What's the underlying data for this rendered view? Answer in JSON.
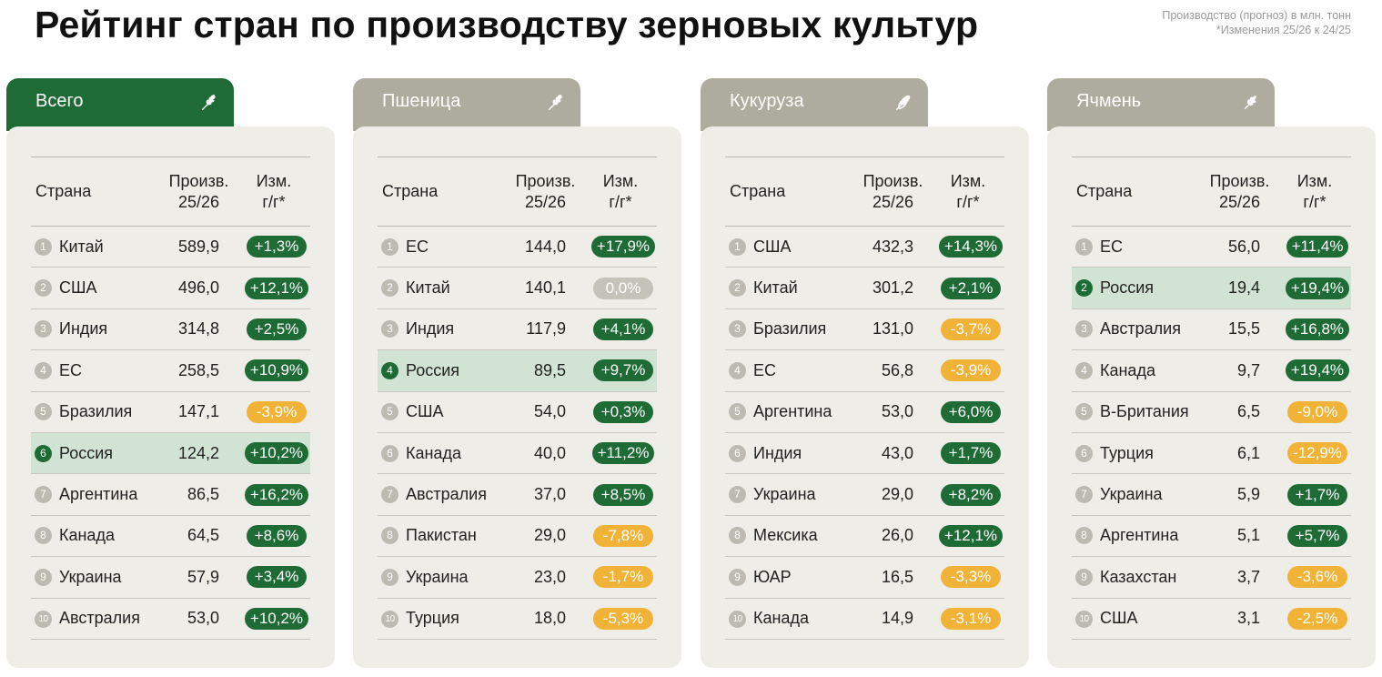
{
  "title": "Рейтинг стран по производству зерновых культур",
  "note": {
    "line1": "Производство (прогноз) в млн. тонн",
    "line2": "*Изменения 25/26 к 24/25"
  },
  "colors": {
    "active_tab": "#1e6b35",
    "inactive_tab": "#aeab9f",
    "card_bg": "#eeede8",
    "highlight_row": "#d1e4d3",
    "positive": "#1e6b35",
    "negative": "#f0b338",
    "neutral": "#c5c2b9"
  },
  "headers": {
    "country": "Страна",
    "prod_line1": "Произв.",
    "prod_line2": "25/26",
    "chg_line1": "Изм.",
    "chg_line2": "г/г*"
  },
  "panels": [
    {
      "tab": "Всего",
      "icon": "wheat-icon",
      "active": true,
      "rows": [
        {
          "rank": "1",
          "country": "Китай",
          "prod": "589,9",
          "chg": "+1,3%",
          "dir": "pos"
        },
        {
          "rank": "2",
          "country": "США",
          "prod": "496,0",
          "chg": "+12,1%",
          "dir": "pos"
        },
        {
          "rank": "3",
          "country": "Индия",
          "prod": "314,8",
          "chg": "+2,5%",
          "dir": "pos"
        },
        {
          "rank": "4",
          "country": "ЕС",
          "prod": "258,5",
          "chg": "+10,9%",
          "dir": "pos"
        },
        {
          "rank": "5",
          "country": "Бразилия",
          "prod": "147,1",
          "chg": "-3,9%",
          "dir": "neg"
        },
        {
          "rank": "6",
          "country": "Россия",
          "prod": "124,2",
          "chg": "+10,2%",
          "dir": "pos",
          "highlight": true
        },
        {
          "rank": "7",
          "country": "Аргентина",
          "prod": "86,5",
          "chg": "+16,2%",
          "dir": "pos"
        },
        {
          "rank": "8",
          "country": "Канада",
          "prod": "64,5",
          "chg": "+8,6%",
          "dir": "pos"
        },
        {
          "rank": "9",
          "country": "Украина",
          "prod": "57,9",
          "chg": "+3,4%",
          "dir": "pos"
        },
        {
          "rank": "10",
          "country": "Австралия",
          "prod": "53,0",
          "chg": "+10,2%",
          "dir": "pos"
        }
      ]
    },
    {
      "tab": "Пшеница",
      "icon": "wheat-icon",
      "active": false,
      "rows": [
        {
          "rank": "1",
          "country": "ЕС",
          "prod": "144,0",
          "chg": "+17,9%",
          "dir": "pos"
        },
        {
          "rank": "2",
          "country": "Китай",
          "prod": "140,1",
          "chg": "0,0%",
          "dir": "zero"
        },
        {
          "rank": "3",
          "country": "Индия",
          "prod": "117,9",
          "chg": "+4,1%",
          "dir": "pos"
        },
        {
          "rank": "4",
          "country": "Россия",
          "prod": "89,5",
          "chg": "+9,7%",
          "dir": "pos",
          "highlight": true
        },
        {
          "rank": "5",
          "country": "США",
          "prod": "54,0",
          "chg": "+0,3%",
          "dir": "pos"
        },
        {
          "rank": "6",
          "country": "Канада",
          "prod": "40,0",
          "chg": "+11,2%",
          "dir": "pos"
        },
        {
          "rank": "7",
          "country": "Австралия",
          "prod": "37,0",
          "chg": "+8,5%",
          "dir": "pos"
        },
        {
          "rank": "8",
          "country": "Пакистан",
          "prod": "29,0",
          "chg": "-7,8%",
          "dir": "neg"
        },
        {
          "rank": "9",
          "country": "Украина",
          "prod": "23,0",
          "chg": "-1,7%",
          "dir": "neg"
        },
        {
          "rank": "10",
          "country": "Турция",
          "prod": "18,0",
          "chg": "-5,3%",
          "dir": "neg"
        }
      ]
    },
    {
      "tab": "Кукуруза",
      "icon": "corn-icon",
      "active": false,
      "rows": [
        {
          "rank": "1",
          "country": "США",
          "prod": "432,3",
          "chg": "+14,3%",
          "dir": "pos"
        },
        {
          "rank": "2",
          "country": "Китай",
          "prod": "301,2",
          "chg": "+2,1%",
          "dir": "pos"
        },
        {
          "rank": "3",
          "country": "Бразилия",
          "prod": "131,0",
          "chg": "-3,7%",
          "dir": "neg"
        },
        {
          "rank": "4",
          "country": "ЕС",
          "prod": "56,8",
          "chg": "-3,9%",
          "dir": "neg"
        },
        {
          "rank": "5",
          "country": "Аргентина",
          "prod": "53,0",
          "chg": "+6,0%",
          "dir": "pos"
        },
        {
          "rank": "6",
          "country": "Индия",
          "prod": "43,0",
          "chg": "+1,7%",
          "dir": "pos"
        },
        {
          "rank": "7",
          "country": "Украина",
          "prod": "29,0",
          "chg": "+8,2%",
          "dir": "pos"
        },
        {
          "rank": "8",
          "country": "Мексика",
          "prod": "26,0",
          "chg": "+12,1%",
          "dir": "pos"
        },
        {
          "rank": "9",
          "country": "ЮАР",
          "prod": "16,5",
          "chg": "-3,3%",
          "dir": "neg"
        },
        {
          "rank": "10",
          "country": "Канада",
          "prod": "14,9",
          "chg": "-3,1%",
          "dir": "neg"
        }
      ]
    },
    {
      "tab": "Ячмень",
      "icon": "barley-icon",
      "active": false,
      "rows": [
        {
          "rank": "1",
          "country": "ЕС",
          "prod": "56,0",
          "chg": "+11,4%",
          "dir": "pos"
        },
        {
          "rank": "2",
          "country": "Россия",
          "prod": "19,4",
          "chg": "+19,4%",
          "dir": "pos",
          "highlight": true
        },
        {
          "rank": "3",
          "country": "Австралия",
          "prod": "15,5",
          "chg": "+16,8%",
          "dir": "pos"
        },
        {
          "rank": "4",
          "country": "Канада",
          "prod": "9,7",
          "chg": "+19,4%",
          "dir": "pos"
        },
        {
          "rank": "5",
          "country": "В-Британия",
          "prod": "6,5",
          "chg": "-9,0%",
          "dir": "neg"
        },
        {
          "rank": "6",
          "country": "Турция",
          "prod": "6,1",
          "chg": "-12,9%",
          "dir": "neg"
        },
        {
          "rank": "7",
          "country": "Украина",
          "prod": "5,9",
          "chg": "+1,7%",
          "dir": "pos"
        },
        {
          "rank": "8",
          "country": "Аргентина",
          "prod": "5,1",
          "chg": "+5,7%",
          "dir": "pos"
        },
        {
          "rank": "9",
          "country": "Казахстан",
          "prod": "3,7",
          "chg": "-3,6%",
          "dir": "neg"
        },
        {
          "rank": "10",
          "country": "США",
          "prod": "3,1",
          "chg": "-2,5%",
          "dir": "neg"
        }
      ]
    }
  ]
}
